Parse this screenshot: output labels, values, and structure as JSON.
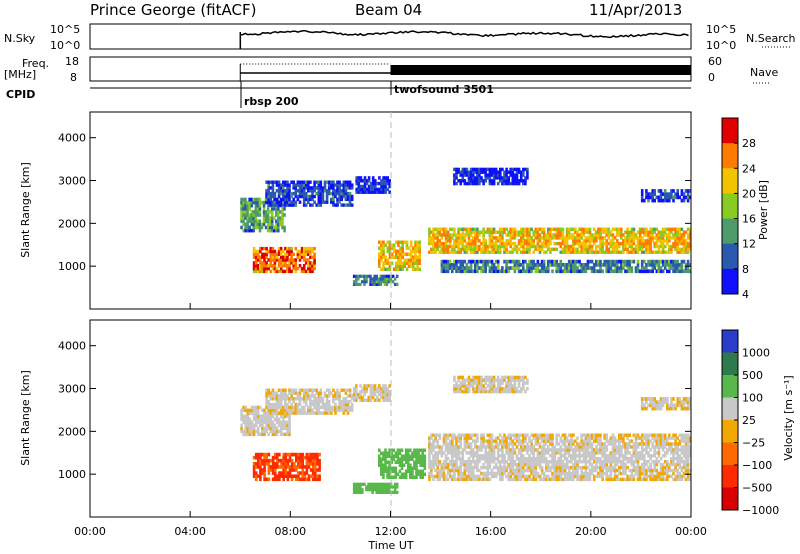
{
  "header": {
    "station": "Prince George (fitACF)",
    "beam": "Beam 04",
    "date": "11/Apr/2013"
  },
  "top_panels": {
    "nsky_label": "N.Sky",
    "nsky_ticks": [
      "10^5",
      "10^0"
    ],
    "nsearch_label": "N.Search",
    "nsearch_ticks": [
      "10^5",
      "10^0"
    ],
    "freq_label": "Freq.",
    "freq_unit": "[MHz]",
    "freq_ticks": [
      "18",
      "8"
    ],
    "nave_label": "Nave",
    "nave_ticks": [
      "60",
      "0"
    ],
    "cpid_label": "CPID",
    "cpid_modes": [
      {
        "name": "rbsp 200",
        "start_hour": 6.0
      },
      {
        "name": "twofsound 3501",
        "start_hour": 12.0
      }
    ]
  },
  "chart_data": [
    {
      "type": "heatmap",
      "panel": "power",
      "ylabel": "Slant Range [km]",
      "ylim": [
        0,
        4600
      ],
      "yticks": [
        1000,
        2000,
        3000,
        4000
      ],
      "xlim": [
        0,
        24
      ],
      "colorbar": {
        "label": "Power [dB]",
        "ticks": [
          "28",
          "24",
          "20",
          "16",
          "12",
          "8",
          "4"
        ],
        "colors": [
          "#e00000",
          "#ff7a00",
          "#f2c300",
          "#88cc22",
          "#4d9a6a",
          "#2a5ab0",
          "#1010ff"
        ]
      },
      "regions": [
        {
          "t0": 6.0,
          "t1": 7.8,
          "r0": 1800,
          "r1": 2600,
          "level": 14
        },
        {
          "t0": 7.0,
          "t1": 10.5,
          "r0": 2400,
          "r1": 3000,
          "level": 8
        },
        {
          "t0": 6.5,
          "t1": 9.0,
          "r0": 850,
          "r1": 1450,
          "level": 26
        },
        {
          "t0": 10.6,
          "t1": 12.0,
          "r0": 2700,
          "r1": 3100,
          "level": 6
        },
        {
          "t0": 10.5,
          "t1": 12.3,
          "r0": 550,
          "r1": 800,
          "level": 12
        },
        {
          "t0": 11.5,
          "t1": 13.2,
          "r0": 900,
          "r1": 1600,
          "level": 22
        },
        {
          "t0": 13.5,
          "t1": 24.0,
          "r0": 1300,
          "r1": 1900,
          "level": 22
        },
        {
          "t0": 14.0,
          "t1": 24.0,
          "r0": 850,
          "r1": 1150,
          "level": 12
        },
        {
          "t0": 14.5,
          "t1": 17.5,
          "r0": 2900,
          "r1": 3300,
          "level": 6
        },
        {
          "t0": 22.0,
          "t1": 24.0,
          "r0": 2500,
          "r1": 2800,
          "level": 8
        }
      ]
    },
    {
      "type": "heatmap",
      "panel": "velocity",
      "xlabel": "Time UT",
      "ylabel": "Slant Range [km]",
      "ylim": [
        0,
        4600
      ],
      "yticks": [
        1000,
        2000,
        3000,
        4000
      ],
      "xlim": [
        0,
        24
      ],
      "xticks": [
        "00:00",
        "04:00",
        "08:00",
        "12:00",
        "16:00",
        "20:00",
        "00:00"
      ],
      "colorbar": {
        "label": "Velocity [m s⁻¹]",
        "ticks": [
          "1000",
          "500",
          "100",
          "25",
          "−25",
          "−100",
          "−500",
          "−1000"
        ],
        "colors": [
          "#2a3cc8",
          "#2f7a4a",
          "#59b84a",
          "#c8c8c8",
          "#f2a800",
          "#ff6a00",
          "#ff2a00",
          "#d80000"
        ]
      },
      "regions": [
        {
          "t0": 6.0,
          "t1": 8.0,
          "r0": 1900,
          "r1": 2600,
          "level": 0
        },
        {
          "t0": 7.0,
          "t1": 10.5,
          "r0": 2400,
          "r1": 3000,
          "level": 0
        },
        {
          "t0": 6.5,
          "t1": 9.2,
          "r0": 850,
          "r1": 1500,
          "level": -300
        },
        {
          "t0": 10.5,
          "t1": 12.0,
          "r0": 2700,
          "r1": 3100,
          "level": 0
        },
        {
          "t0": 10.5,
          "t1": 12.3,
          "r0": 550,
          "r1": 800,
          "level": 150
        },
        {
          "t0": 11.5,
          "t1": 13.4,
          "r0": 900,
          "r1": 1600,
          "level": 200
        },
        {
          "t0": 13.5,
          "t1": 24.0,
          "r0": 850,
          "r1": 1950,
          "level": 0
        },
        {
          "t0": 14.5,
          "t1": 17.5,
          "r0": 2900,
          "r1": 3300,
          "level": 0
        },
        {
          "t0": 22.0,
          "t1": 24.0,
          "r0": 2500,
          "r1": 2800,
          "level": 0
        }
      ]
    }
  ]
}
